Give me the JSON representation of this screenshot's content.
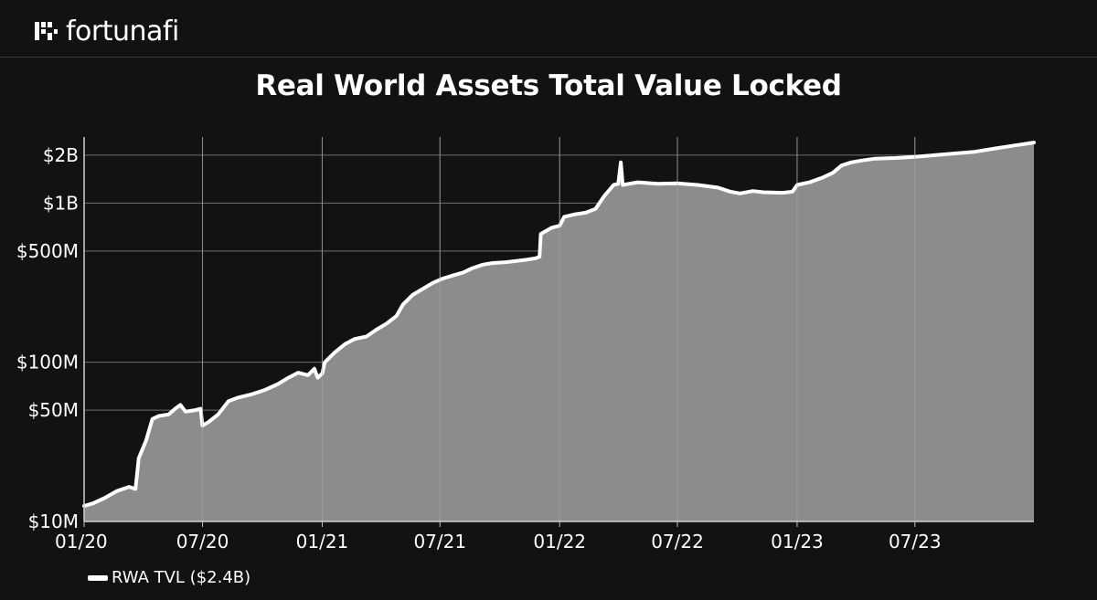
{
  "brand": {
    "name": "fortunafi"
  },
  "chart_data": {
    "type": "area",
    "title": "Real World Assets Total Value Locked",
    "xlabel": "",
    "ylabel": "",
    "y_scale": "log",
    "ylim": [
      10,
      2600
    ],
    "y_unit": "millions USD",
    "x_range": [
      "2020-01-01",
      "2023-12-31"
    ],
    "x_ticks": [
      {
        "label": "01/20",
        "date": "2020-01-01"
      },
      {
        "label": "07/20",
        "date": "2020-07-01"
      },
      {
        "label": "01/21",
        "date": "2021-01-01"
      },
      {
        "label": "07/21",
        "date": "2021-07-01"
      },
      {
        "label": "01/22",
        "date": "2022-01-01"
      },
      {
        "label": "07/22",
        "date": "2022-07-01"
      },
      {
        "label": "01/23",
        "date": "2023-01-01"
      },
      {
        "label": "07/23",
        "date": "2023-07-01"
      }
    ],
    "y_ticks": [
      {
        "label": "$10M",
        "value": 10
      },
      {
        "label": "$50M",
        "value": 50
      },
      {
        "label": "$100M",
        "value": 100
      },
      {
        "label": "$500M",
        "value": 500
      },
      {
        "label": "$1B",
        "value": 1000
      },
      {
        "label": "$2B",
        "value": 2000
      }
    ],
    "grid": true,
    "legend_position": "bottom-left",
    "series": [
      {
        "name": "RWA TVL ($2.4B)",
        "color": "#ffffff",
        "fill": "#8c8c8c",
        "points": [
          [
            "2020-01-01",
            12.5
          ],
          [
            "2020-01-15",
            13.0
          ],
          [
            "2020-02-01",
            14.0
          ],
          [
            "2020-02-20",
            15.5
          ],
          [
            "2020-03-10",
            16.5
          ],
          [
            "2020-03-20",
            16.0
          ],
          [
            "2020-03-25",
            25
          ],
          [
            "2020-04-05",
            32
          ],
          [
            "2020-04-15",
            44
          ],
          [
            "2020-04-25",
            46
          ],
          [
            "2020-05-10",
            47
          ],
          [
            "2020-05-20",
            51
          ],
          [
            "2020-05-28",
            54
          ],
          [
            "2020-06-05",
            49
          ],
          [
            "2020-06-20",
            50
          ],
          [
            "2020-06-28",
            51
          ],
          [
            "2020-07-01",
            40
          ],
          [
            "2020-07-10",
            42
          ],
          [
            "2020-07-25",
            47
          ],
          [
            "2020-08-10",
            57
          ],
          [
            "2020-08-25",
            60
          ],
          [
            "2020-09-15",
            63
          ],
          [
            "2020-10-05",
            67
          ],
          [
            "2020-10-25",
            73
          ],
          [
            "2020-11-10",
            80
          ],
          [
            "2020-11-25",
            86
          ],
          [
            "2020-12-10",
            83
          ],
          [
            "2020-12-20",
            91
          ],
          [
            "2020-12-25",
            80
          ],
          [
            "2021-01-01",
            85
          ],
          [
            "2021-01-05",
            100
          ],
          [
            "2021-01-20",
            115
          ],
          [
            "2021-02-05",
            130
          ],
          [
            "2021-02-20",
            140
          ],
          [
            "2021-03-10",
            145
          ],
          [
            "2021-03-25",
            160
          ],
          [
            "2021-04-10",
            175
          ],
          [
            "2021-04-25",
            195
          ],
          [
            "2021-05-05",
            230
          ],
          [
            "2021-05-20",
            265
          ],
          [
            "2021-06-05",
            290
          ],
          [
            "2021-06-20",
            315
          ],
          [
            "2021-07-05",
            335
          ],
          [
            "2021-07-20",
            350
          ],
          [
            "2021-08-05",
            365
          ],
          [
            "2021-08-20",
            390
          ],
          [
            "2021-09-05",
            410
          ],
          [
            "2021-09-20",
            420
          ],
          [
            "2021-10-10",
            425
          ],
          [
            "2021-10-25",
            432
          ],
          [
            "2021-11-10",
            440
          ],
          [
            "2021-11-25",
            450
          ],
          [
            "2021-12-01",
            460
          ],
          [
            "2021-12-03",
            640
          ],
          [
            "2021-12-20",
            700
          ],
          [
            "2022-01-01",
            720
          ],
          [
            "2022-01-08",
            820
          ],
          [
            "2022-01-25",
            850
          ],
          [
            "2022-02-10",
            870
          ],
          [
            "2022-02-25",
            920
          ],
          [
            "2022-03-10",
            1100
          ],
          [
            "2022-03-25",
            1300
          ],
          [
            "2022-04-01",
            1320
          ],
          [
            "2022-04-05",
            1800
          ],
          [
            "2022-04-08",
            1300
          ],
          [
            "2022-05-01",
            1350
          ],
          [
            "2022-06-01",
            1320
          ],
          [
            "2022-07-01",
            1330
          ],
          [
            "2022-08-01",
            1300
          ],
          [
            "2022-09-01",
            1250
          ],
          [
            "2022-09-20",
            1180
          ],
          [
            "2022-10-05",
            1150
          ],
          [
            "2022-10-25",
            1190
          ],
          [
            "2022-11-10",
            1170
          ],
          [
            "2022-12-10",
            1160
          ],
          [
            "2022-12-25",
            1180
          ],
          [
            "2023-01-01",
            1300
          ],
          [
            "2023-01-20",
            1350
          ],
          [
            "2023-02-10",
            1450
          ],
          [
            "2023-02-25",
            1550
          ],
          [
            "2023-03-10",
            1720
          ],
          [
            "2023-03-25",
            1800
          ],
          [
            "2023-04-10",
            1850
          ],
          [
            "2023-05-01",
            1900
          ],
          [
            "2023-06-01",
            1920
          ],
          [
            "2023-07-01",
            1950
          ],
          [
            "2023-08-01",
            2000
          ],
          [
            "2023-09-01",
            2050
          ],
          [
            "2023-10-01",
            2100
          ],
          [
            "2023-11-01",
            2200
          ],
          [
            "2023-12-01",
            2300
          ],
          [
            "2023-12-31",
            2400
          ]
        ]
      }
    ]
  }
}
